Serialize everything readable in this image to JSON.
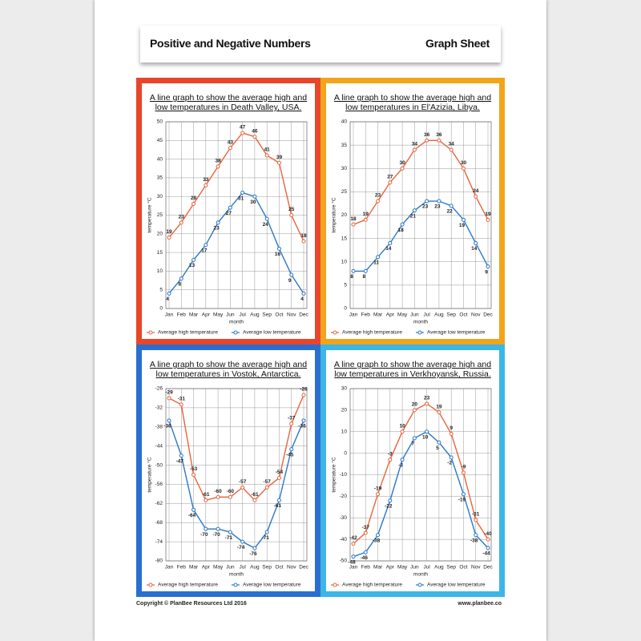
{
  "header": {
    "title": "Positive and Negative Numbers",
    "subtitle": "Graph Sheet"
  },
  "footer": {
    "copyright": "Copyright © PlanBee Resources Ltd 2016",
    "website": "www.planbee.co"
  },
  "chart_data": [
    {
      "type": "line",
      "title": "A line graph to show the average high and low temperatures in Death Valley, USA.",
      "border_color": "#e8452a",
      "x_label": "month",
      "y_label": "temperature °C",
      "categories": [
        "Jan",
        "Feb",
        "Mar",
        "Apr",
        "May",
        "Jun",
        "Jul",
        "Aug",
        "Sep",
        "Oct",
        "Nov",
        "Dec"
      ],
      "series": [
        {
          "name": "Average high temperature",
          "color": "#e8643c",
          "values": [
            19,
            23,
            28,
            33,
            38,
            43,
            47,
            46,
            41,
            39,
            25,
            18
          ]
        },
        {
          "name": "Average low temperature",
          "color": "#2a78c8",
          "values": [
            4,
            8,
            13,
            17,
            23,
            27,
            31,
            30,
            24,
            16,
            9,
            4
          ]
        }
      ],
      "ylim": [
        0,
        50
      ],
      "yticks": [
        0,
        5,
        10,
        15,
        20,
        25,
        30,
        35,
        40,
        45,
        50
      ],
      "grid": true
    },
    {
      "type": "line",
      "title": "A line graph to show the average high and low temperatures in El'Azizia, Libya.",
      "border_color": "#f2a41c",
      "x_label": "month",
      "y_label": "temperature °C",
      "categories": [
        "Jan",
        "Feb",
        "Mar",
        "Apr",
        "May",
        "Jun",
        "Jul",
        "Aug",
        "Sep",
        "Oct",
        "Nov",
        "Dec"
      ],
      "series": [
        {
          "name": "Average high temperature",
          "color": "#e8643c",
          "values": [
            18,
            19,
            23,
            27,
            30,
            34,
            36,
            36,
            34,
            30,
            24,
            19
          ]
        },
        {
          "name": "Average low temperature",
          "color": "#2a78c8",
          "values": [
            8,
            8,
            11,
            14,
            18,
            21,
            23,
            23,
            22,
            19,
            14,
            9
          ]
        }
      ],
      "ylim": [
        0,
        40
      ],
      "yticks": [
        0,
        5,
        10,
        15,
        20,
        25,
        30,
        35,
        40
      ],
      "grid": true
    },
    {
      "type": "line",
      "title": "A line graph to show the average high and low temperatures in Vostok, Antarctica.",
      "border_color": "#2a6fd0",
      "x_label": "month",
      "y_label": "temperature °C",
      "categories": [
        "Jan",
        "Feb",
        "Mar",
        "Apr",
        "May",
        "Jun",
        "Jul",
        "Aug",
        "Sep",
        "Oct",
        "Nov",
        "Dec"
      ],
      "series": [
        {
          "name": "Average high temperature",
          "color": "#e8643c",
          "values": [
            -29,
            -31,
            -53,
            -61,
            -60,
            -60,
            -57,
            -61,
            -57,
            -54,
            -37,
            -28
          ]
        },
        {
          "name": "Average low temperature",
          "color": "#2a78c8",
          "values": [
            -36,
            -47,
            -64,
            -70,
            -70,
            -71,
            -74,
            -76,
            -71,
            -61,
            -45,
            -36
          ]
        }
      ],
      "ylim": [
        -80,
        -26
      ],
      "yticks": [
        -80,
        -74,
        -68,
        -62,
        -56,
        -50,
        -44,
        -38,
        -32,
        -26
      ],
      "grid": true
    },
    {
      "type": "line",
      "title": "A line graph to show the average high and low temperatures in Verkhoyansk, Russia.",
      "border_color": "#3cb6e6",
      "x_label": "month",
      "y_label": "temperature °C",
      "categories": [
        "Jan",
        "Feb",
        "Mar",
        "Apr",
        "May",
        "Jun",
        "Jul",
        "Aug",
        "Sep",
        "Oct",
        "Nov",
        "Dec"
      ],
      "series": [
        {
          "name": "Average high temperature",
          "color": "#e8643c",
          "values": [
            -42,
            -37,
            -19,
            -3,
            10,
            20,
            23,
            19,
            9,
            -9,
            -31,
            -40
          ]
        },
        {
          "name": "Average low temperature",
          "color": "#2a78c8",
          "values": [
            -48,
            -46,
            -38,
            -22,
            -3,
            7,
            10,
            5,
            -2,
            -19,
            -38,
            -44
          ]
        }
      ],
      "ylim": [
        -50,
        30
      ],
      "yticks": [
        -50,
        -40,
        -30,
        -20,
        -10,
        0,
        10,
        20,
        30
      ],
      "grid": true
    }
  ]
}
